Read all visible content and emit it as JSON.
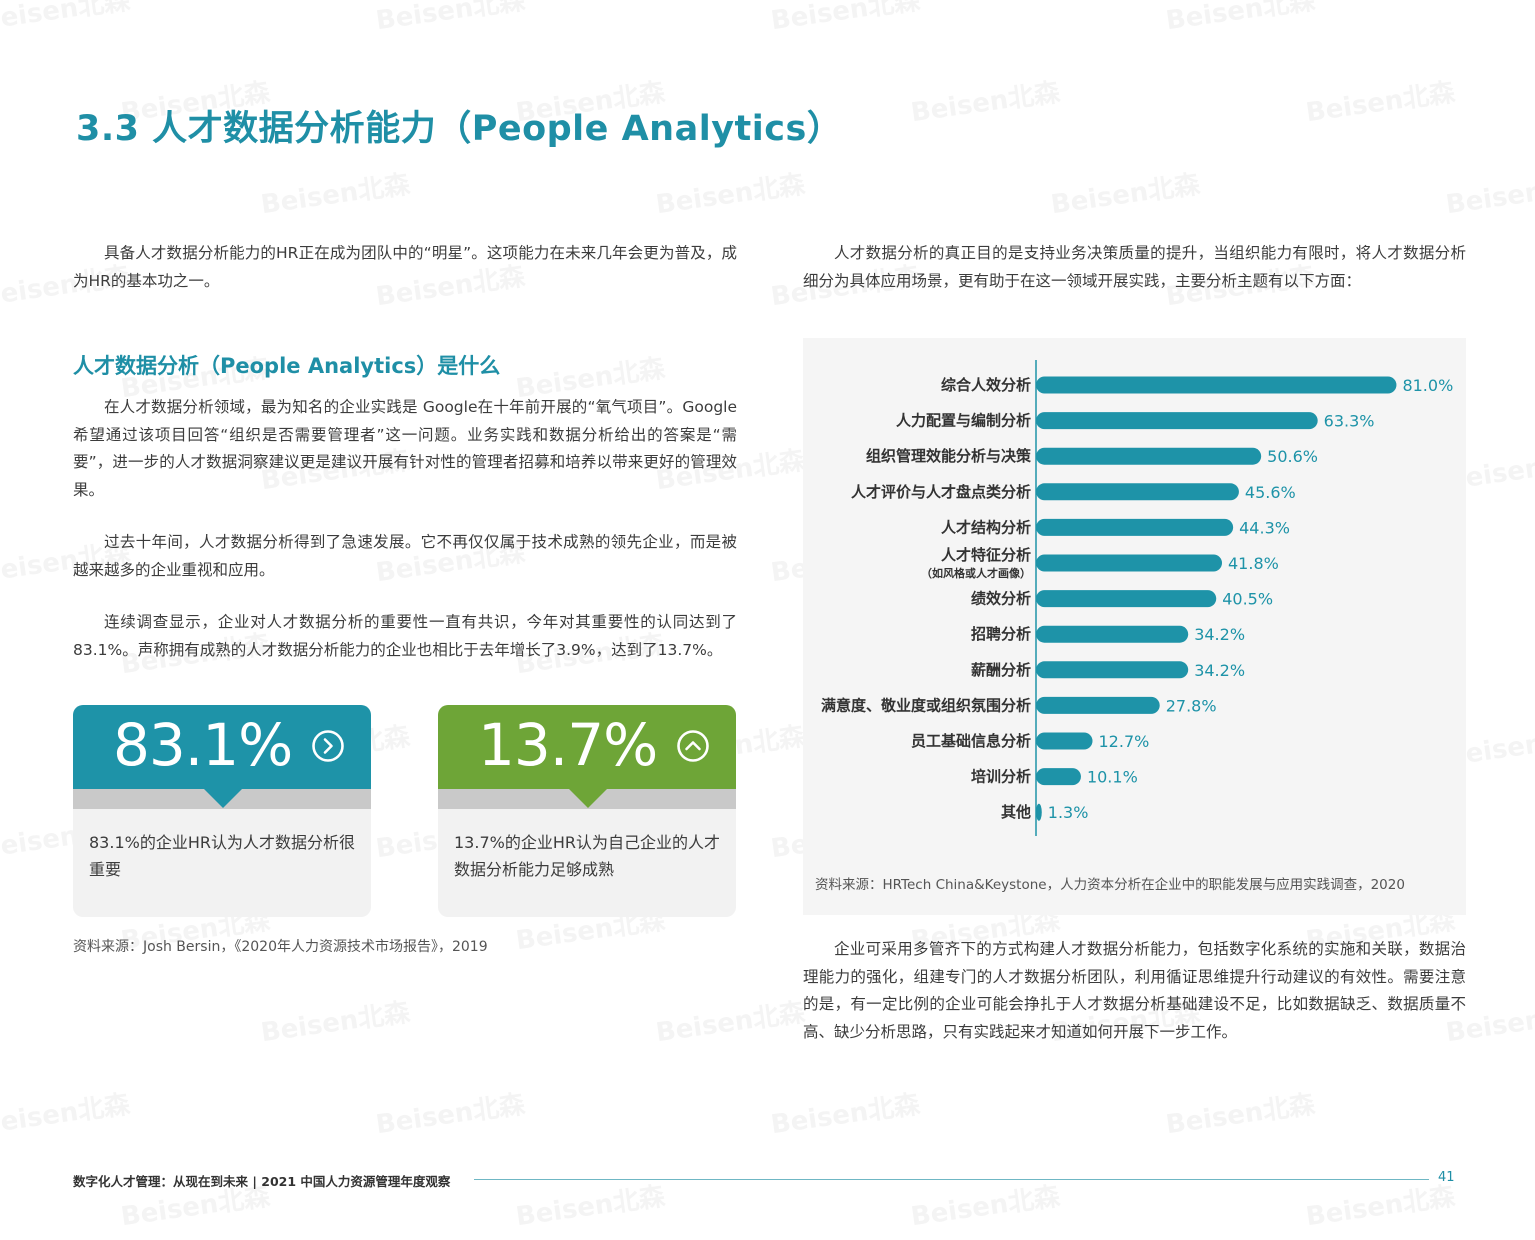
{
  "watermark": "Beisen北森",
  "title": "3.3 人才数据分析能力（People Analytics）",
  "left_intro": "具备人才数据分析能力的HR正在成为团队中的“明星”。这项能力在未来几年会更为普及，成为HR的基本功之一。",
  "subheading": "人才数据分析（People Analytics）是什么",
  "left_paragraphs": [
    "在人才数据分析领域，最为知名的企业实践是 Google在十年前开展的“氧气项目”。Google希望通过该项目回答“组织是否需要管理者”这一问题。业务实践和数据分析给出的答案是“需要”，进一步的人才数据洞察建议更是建议开展有针对性的管理者招募和培养以带来更好的管理效果。",
    "过去十年间，人才数据分析得到了急速发展。它不再仅仅属于技术成熟的领先企业，而是被越来越多的企业重视和应用。",
    "连续调查显示，企业对人才数据分析的重要性一直有共识，今年对其重要性的认同达到了83.1%。声称拥有成熟的人才数据分析能力的企业也相比于去年增长了3.9%，达到了13.7%。"
  ],
  "cards": [
    {
      "value": "83.1%",
      "icon": "chevron-right-circle-icon",
      "description": "83.1%的企业HR认为人才数据分析很重要",
      "color": "#1e93a8"
    },
    {
      "value": "13.7%",
      "icon": "chevron-up-circle-icon",
      "description": "13.7%的企业HR认为自己企业的人才数据分析能力足够成熟",
      "color": "#6ea537"
    }
  ],
  "left_source": "资料来源：Josh Bersin，《2020年人力资源技术市场报告》，2019",
  "right_intro": "人才数据分析的真正目的是支持业务决策质量的提升，当组织能力有限时，将人才数据分析细分为具体应用场景，更有助于在这一领域开展实践，主要分析主题有以下方面：",
  "chart_data": {
    "type": "bar",
    "orientation": "horizontal",
    "categories": [
      "综合人效分析",
      "人力配置与编制分析",
      "组织管理效能分析与决策",
      "人才评价与人才盘点类分析",
      "人才结构分析",
      "人才特征分析",
      "绩效分析",
      "招聘分析",
      "薪酬分析",
      "满意度、敬业度或组织氛围分析",
      "员工基础信息分析",
      "培训分析",
      "其他"
    ],
    "category_notes": [
      "",
      "",
      "",
      "",
      "",
      "（如风格或人才画像）",
      "",
      "",
      "",
      "",
      "",
      "",
      ""
    ],
    "values": [
      81.0,
      63.3,
      50.6,
      45.6,
      44.3,
      41.8,
      40.5,
      34.2,
      34.2,
      27.8,
      12.7,
      10.1,
      1.3
    ],
    "value_labels": [
      "81.0%",
      "63.3%",
      "50.6%",
      "45.6%",
      "44.3%",
      "41.8%",
      "40.5%",
      "34.2%",
      "34.2%",
      "27.8%",
      "12.7%",
      "10.1%",
      "1.3%"
    ],
    "xlim": [
      0,
      100
    ],
    "bar_color": "#1e93a8",
    "title": "",
    "xlabel": "",
    "ylabel": "",
    "grid": false
  },
  "chart_source": "资料来源：HRTech China&Keystone，人力资本分析在企业中的职能发展与应用实践调查，2020",
  "right_conclusion": "企业可采用多管齐下的方式构建人才数据分析能力，包括数字化系统的实施和关联，数据治理能力的强化，组建专门的人才数据分析团队，利用循证思维提升行动建议的有效性。需要注意的是，有一定比例的企业可能会挣扎于人才数据分析基础建设不足，比如数据缺乏、数据质量不高、缺少分析思路，只有实践起来才知道如何开展下一步工作。",
  "footer": {
    "text": "数字化人才管理：从现在到未来 | 2021 中国人力资源管理年度观察",
    "page": "41"
  }
}
